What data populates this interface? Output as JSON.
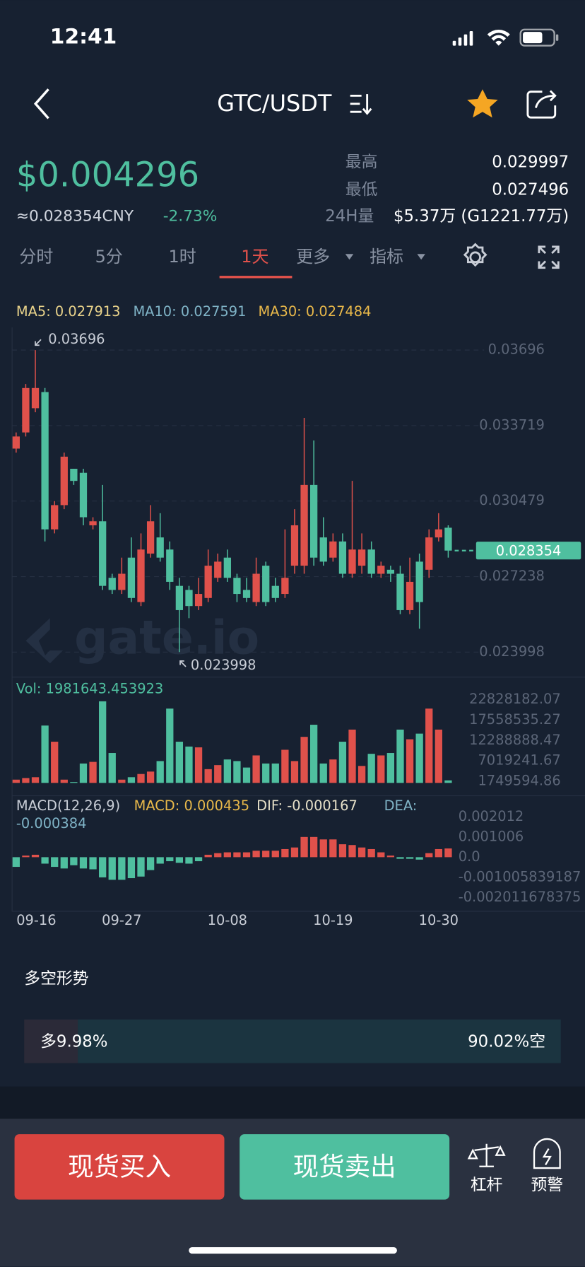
{
  "status": {
    "time": "12:41"
  },
  "header": {
    "pair": "GTC/USDT"
  },
  "price": {
    "last": "$0.004296",
    "cny": "≈0.028354CNY",
    "change": "-2.73%",
    "high_label": "最高",
    "high": "0.029997",
    "low_label": "最低",
    "low": "0.027496",
    "vol_label": "24H量",
    "vol": "$5.37万 (G1221.77万)"
  },
  "tabs": [
    "分时",
    "5分",
    "1时",
    "1天",
    "更多",
    "指标"
  ],
  "active_tab": 3,
  "chart_data": {
    "type": "candlestick",
    "legend": [
      "MA5: 0.027913",
      "MA10: 0.027591",
      "MA30: 0.027484"
    ],
    "categories": [
      "09-16",
      null,
      null,
      null,
      null,
      null,
      null,
      null,
      null,
      null,
      null,
      "09-27",
      null,
      null,
      null,
      null,
      null,
      null,
      null,
      null,
      null,
      null,
      "10-08",
      null,
      null,
      null,
      null,
      null,
      null,
      null,
      null,
      null,
      null,
      "10-19",
      null,
      null,
      null,
      null,
      null,
      null,
      null,
      null,
      null,
      null,
      "10-30",
      null
    ],
    "open": [
      0.032731,
      0.033425,
      0.034464,
      0.035158,
      0.029265,
      0.030305,
      0.031865,
      0.031692,
      0.029439,
      0.029612,
      0.027186,
      0.026666,
      0.028052,
      0.026146,
      0.028226,
      0.028919,
      0.028399,
      0.026839,
      0.026666,
      0.025973,
      0.026319,
      0.027186,
      0.028052,
      0.027186,
      0.026666,
      0.026146,
      0.027706,
      0.026839,
      0.026493,
      0.027706,
      0.027706,
      0.031172,
      0.028919,
      0.028052,
      0.028746,
      0.027359,
      0.027706,
      0.028399,
      0.027359,
      0.027532,
      0.027359,
      0.025799,
      0.027879,
      0.027532,
      0.028919,
      0.029335
    ],
    "high": [
      0.033425,
      0.035504,
      0.03696,
      0.035331,
      0.030479,
      0.032558,
      0.031865,
      0.031865,
      0.029785,
      0.031172,
      0.027359,
      0.028052,
      0.028919,
      0.029092,
      0.030305,
      0.029959,
      0.028746,
      0.027186,
      0.026839,
      0.027186,
      0.028399,
      0.028226,
      0.028399,
      0.027359,
      0.027186,
      0.028052,
      0.027879,
      0.027186,
      0.029265,
      0.030132,
      0.034049,
      0.033078,
      0.029785,
      0.029092,
      0.029092,
      0.031345,
      0.029092,
      0.028746,
      0.027879,
      0.027706,
      0.027706,
      0.028052,
      0.028226,
      0.029265,
      0.029959,
      0.029439
    ],
    "low": [
      0.032558,
      0.033251,
      0.034291,
      0.028746,
      0.029092,
      0.030132,
      0.031172,
      0.029439,
      0.029265,
      0.026666,
      0.026493,
      0.026493,
      0.026146,
      0.025973,
      0.028052,
      0.027879,
      0.026666,
      0.023998,
      0.025453,
      0.025799,
      0.026146,
      0.027013,
      0.027013,
      0.026146,
      0.026146,
      0.025973,
      0.025973,
      0.026146,
      0.026319,
      0.027359,
      0.027359,
      0.027706,
      0.027706,
      0.027879,
      0.027186,
      0.027186,
      0.027359,
      0.027186,
      0.027186,
      0.027013,
      0.025626,
      0.025626,
      0.025002,
      0.027186,
      0.028746,
      0.028052
    ],
    "close": [
      0.033251,
      0.035331,
      0.035331,
      0.029265,
      0.030305,
      0.032385,
      0.031345,
      0.029785,
      0.029612,
      0.026839,
      0.026666,
      0.027359,
      0.026319,
      0.028399,
      0.029612,
      0.028052,
      0.027013,
      0.025799,
      0.025973,
      0.026493,
      0.027706,
      0.027879,
      0.027186,
      0.026493,
      0.026319,
      0.027359,
      0.026146,
      0.026319,
      0.027186,
      0.029439,
      0.031172,
      0.028052,
      0.027879,
      0.028746,
      0.027359,
      0.028399,
      0.028399,
      0.027359,
      0.027706,
      0.027359,
      0.025799,
      0.027013,
      0.026146,
      0.028919,
      0.029265,
      0.028354
    ],
    "ylim": [
      0.022924,
      0.03793
    ],
    "yticks": [
      0.03696,
      0.033719,
      0.030479,
      0.027238,
      0.023998
    ],
    "grid": true,
    "up_color": "#e0514b",
    "down_color": "#4fbf9f",
    "max": 0.03696,
    "min": 0.023998,
    "last": 0.028354,
    "watermark": "gate.io",
    "volume": {
      "label": "Vol: 1981643.453923",
      "values": [
        2167000,
        2584000,
        2793000,
        16149000,
        11975000,
        2167000,
        1541000,
        6341000,
        6758000,
        22409000,
        9053000,
        2167000,
        2793000,
        3628000,
        4254000,
        6967000,
        20531000,
        11975000,
        10723000,
        10514000,
        4880000,
        5923000,
        7384000,
        6967000,
        5297000,
        8427000,
        6341000,
        6341000,
        9888000,
        6967000,
        13227000,
        16358000,
        6341000,
        7384000,
        11975000,
        15105000,
        5714000,
        8845000,
        8427000,
        9053000,
        15105000,
        12601000,
        14062000,
        20531000,
        15105000,
        1981643.453923
      ],
      "ylim": [
        1332225,
        24497662
      ],
      "yticks": [
        22828182.07,
        17558535.27,
        12288888.47,
        7019241.67,
        1749594.86
      ]
    },
    "macd": {
      "title": "MACD(12,26,9)",
      "macd_label": "MACD: 0.000435",
      "dif_label": "DIF: -0.000167",
      "dea_label": "DEA:",
      "dea_value": "-0.000384",
      "values": [
        -0.000483,
        8e-05,
        0.000121,
        -0.000322,
        -0.000483,
        -0.000563,
        -0.000402,
        -0.000563,
        -0.000604,
        -0.001006,
        -0.001127,
        -0.001127,
        -0.001046,
        -0.000966,
        -0.000644,
        -0.000322,
        -0.000201,
        -0.000282,
        -0.000322,
        -0.000201,
        0.000121,
        0.000201,
        0.000241,
        0.000241,
        0.000241,
        0.000322,
        0.000322,
        0.000322,
        0.000402,
        0.000483,
        0.001006,
        0.001006,
        0.000885,
        0.000885,
        0.000644,
        0.000604,
        0.000483,
        0.000402,
        0.000241,
        8e-05,
        -8e-05,
        -8e-05,
        -0.000121,
        0.000201,
        0.000402,
        0.000435
      ],
      "ylim": [
        -0.002575,
        0.002455
      ],
      "yticks": [
        0.002012,
        0.001006,
        {
          "value": 0,
          "label": "0.0"
        },
        -0.001005839187,
        -0.002011678375
      ]
    }
  },
  "sentiment": {
    "title": "多空形势",
    "long": 9.98,
    "long_label": "多9.98%",
    "short": 90.02,
    "short_label": "90.02%空"
  },
  "actions": {
    "buy": "现货买入",
    "sell": "现货卖出",
    "margin": "杠杆",
    "alert": "预警"
  }
}
